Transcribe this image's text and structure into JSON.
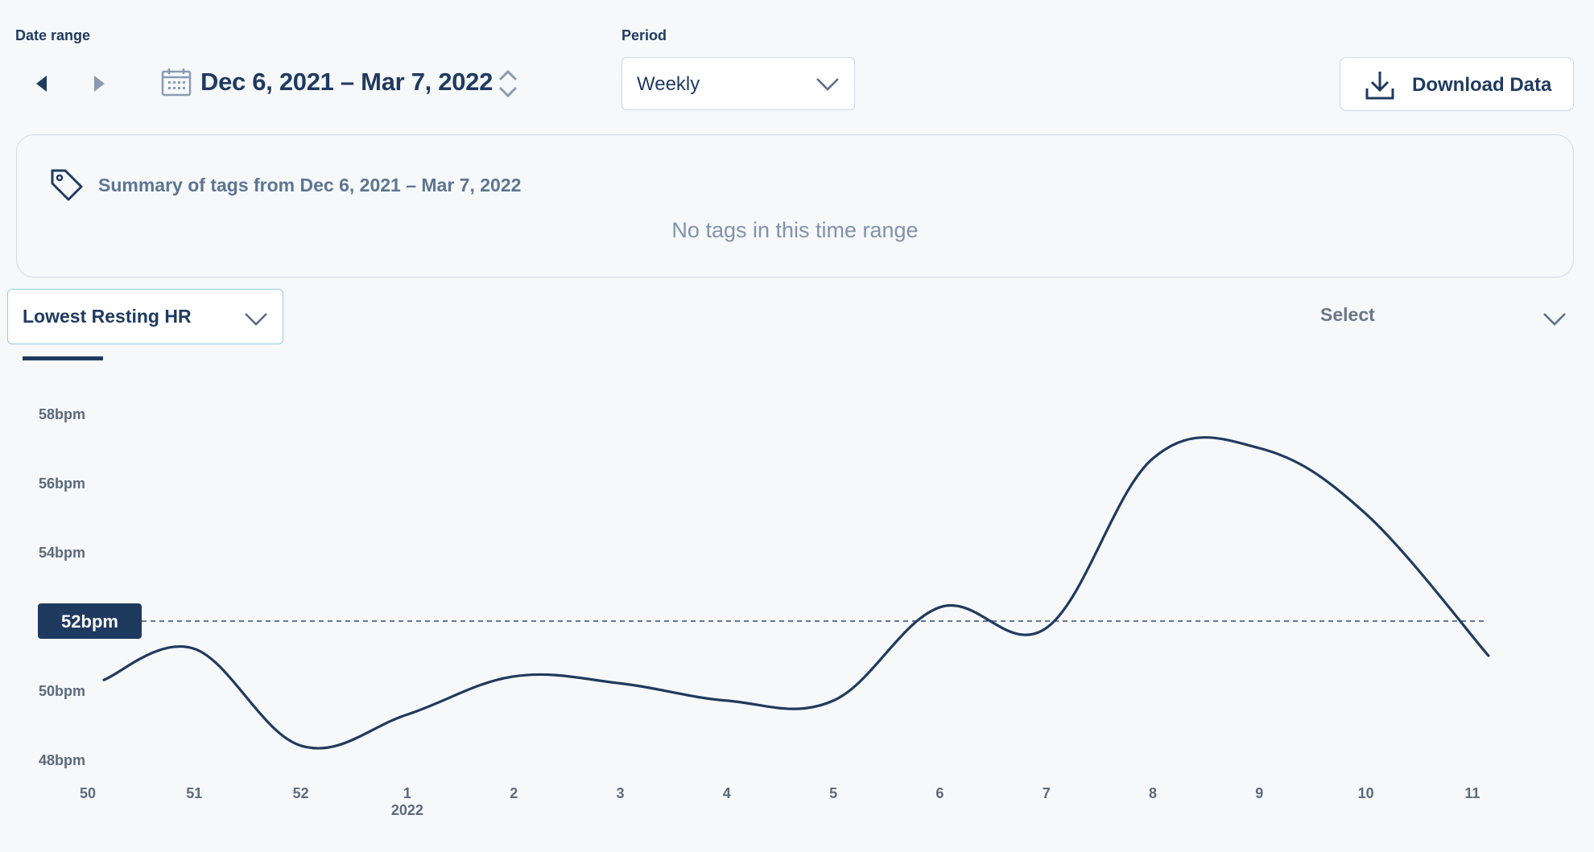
{
  "header": {
    "date_range_label": "Date range",
    "date_range_value": "Dec 6, 2021 – Mar 7, 2022",
    "period_label": "Period",
    "period_value": "Weekly",
    "download_label": "Download Data"
  },
  "summary": {
    "title": "Summary of tags from Dec 6, 2021 – Mar 7, 2022",
    "empty_text": "No tags in this time range"
  },
  "metric_selector": {
    "value": "Lowest Resting HR"
  },
  "secondary_selector": {
    "label": "Select"
  },
  "chart_data": {
    "type": "line",
    "x": [
      "50",
      "51",
      "52",
      "1",
      "2",
      "3",
      "4",
      "5",
      "6",
      "7",
      "8",
      "9",
      "10",
      "11"
    ],
    "x_sublabel": "2022",
    "y_ticks": [
      "48bpm",
      "50bpm",
      "52bpm",
      "54bpm",
      "56bpm",
      "58bpm"
    ],
    "ylim": [
      48,
      58
    ],
    "series": [
      {
        "values": [
          50.3,
          51.2,
          48.4,
          49.3,
          50.4,
          50.2,
          49.7,
          49.7,
          52.4,
          51.8,
          56.7,
          57.0,
          55.1,
          51.0
        ]
      }
    ],
    "reference_line": {
      "value": 52,
      "label": "52bpm"
    },
    "colors": {
      "line": "#1f3a5f",
      "badge": "#1f3a5f"
    }
  }
}
